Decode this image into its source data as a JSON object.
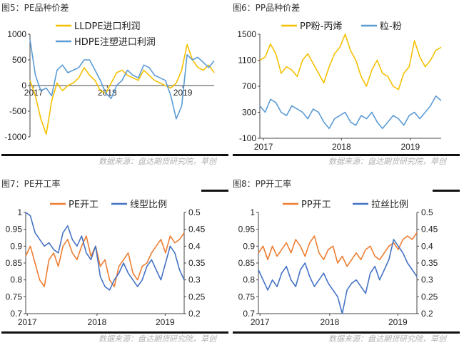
{
  "panels": [
    {
      "title": "图5：PE品种价差",
      "source": "数据来源：盘达期货研究院，草创"
    },
    {
      "title": "图6：PP品种价差",
      "source": "数据来源：盘达期货研究院，草创"
    },
    {
      "title": "图7：PE开工率",
      "source": "数据来源：盘达期货研究院，草创"
    },
    {
      "title": "图8：PP开工率",
      "source": "数据来源：盘达期货研究院，草创"
    }
  ],
  "chart_data": [
    {
      "type": "line",
      "x_ticks": [
        "2017",
        "2018",
        "2019"
      ],
      "ylim": [
        -1000,
        1000
      ],
      "y_ticks": [
        -1000,
        -500,
        0,
        500,
        1000
      ],
      "legend_position": "top",
      "series": [
        {
          "name": "LLDPE进口利润",
          "color": "#F5C000",
          "values": [
            100,
            -200,
            -650,
            -950,
            -300,
            50,
            -100,
            0,
            50,
            150,
            350,
            200,
            100,
            -100,
            -150,
            50,
            250,
            300,
            200,
            150,
            100,
            300,
            200,
            100,
            50,
            0,
            -50,
            50,
            300,
            800,
            500,
            350,
            300,
            400,
            250
          ]
        },
        {
          "name": "HDPE注塑进口利润",
          "color": "#5B9BD5",
          "values": [
            900,
            200,
            -100,
            -50,
            -200,
            300,
            400,
            250,
            300,
            350,
            500,
            500,
            300,
            100,
            -150,
            -250,
            0,
            100,
            300,
            200,
            150,
            400,
            350,
            200,
            150,
            100,
            -200,
            -650,
            -400,
            600,
            500,
            550,
            450,
            350,
            480
          ]
        }
      ]
    },
    {
      "type": "line",
      "x_ticks": [
        "2017",
        "2018",
        "2019"
      ],
      "ylim": [
        -100,
        1500
      ],
      "y_ticks": [
        -100,
        300,
        700,
        1100,
        1500
      ],
      "legend_position": "top",
      "series": [
        {
          "name": "PP粉-丙烯",
          "color": "#F5C000",
          "values": [
            1100,
            1150,
            1350,
            1200,
            900,
            1000,
            950,
            850,
            1100,
            1200,
            1050,
            900,
            750,
            1000,
            1200,
            1300,
            1500,
            1250,
            1100,
            850,
            700,
            950,
            1100,
            900,
            850,
            700,
            650,
            900,
            1000,
            1400,
            1150,
            1000,
            1100,
            1250,
            1300
          ]
        },
        {
          "name": "粒-粉",
          "color": "#5B9BD5",
          "values": [
            400,
            300,
            500,
            450,
            300,
            250,
            400,
            350,
            300,
            200,
            350,
            300,
            150,
            50,
            200,
            250,
            300,
            150,
            100,
            250,
            200,
            300,
            150,
            50,
            150,
            250,
            200,
            100,
            250,
            300,
            200,
            300,
            400,
            550,
            480
          ]
        }
      ]
    },
    {
      "type": "line",
      "x_ticks": [
        "2017",
        "2018",
        "2019"
      ],
      "y_left_lim": [
        0.7,
        1.0
      ],
      "y_left_ticks": [
        0.7,
        0.75,
        0.8,
        0.85,
        0.9,
        0.95,
        1.0
      ],
      "y_right_lim": [
        0.2,
        0.5
      ],
      "y_right_ticks": [
        0.2,
        0.25,
        0.3,
        0.35,
        0.4,
        0.45,
        0.5
      ],
      "legend_position": "top",
      "series": [
        {
          "name": "PE开工",
          "color": "#ED7D31",
          "axis": "left",
          "values": [
            0.87,
            0.9,
            0.85,
            0.8,
            0.78,
            0.86,
            0.88,
            0.84,
            0.9,
            0.92,
            0.88,
            0.86,
            0.9,
            0.93,
            0.87,
            0.9,
            0.84,
            0.86,
            0.8,
            0.78,
            0.84,
            0.86,
            0.88,
            0.82,
            0.8,
            0.84,
            0.85,
            0.88,
            0.9,
            0.92,
            0.88,
            0.93,
            0.91,
            0.92,
            0.94
          ]
        },
        {
          "name": "线型比例",
          "color": "#4472C4",
          "axis": "right",
          "values": [
            0.5,
            0.49,
            0.44,
            0.42,
            0.4,
            0.41,
            0.39,
            0.38,
            0.44,
            0.46,
            0.42,
            0.4,
            0.43,
            0.38,
            0.36,
            0.4,
            0.31,
            0.28,
            0.27,
            0.3,
            0.32,
            0.35,
            0.32,
            0.3,
            0.28,
            0.3,
            0.34,
            0.36,
            0.33,
            0.3,
            0.35,
            0.4,
            0.38,
            0.33,
            0.3
          ]
        }
      ]
    },
    {
      "type": "line",
      "x_ticks": [
        "2017",
        "2018",
        "2019"
      ],
      "y_left_lim": [
        0.7,
        1.0
      ],
      "y_left_ticks": [
        0.7,
        0.75,
        0.8,
        0.85,
        0.9,
        0.95,
        1.0
      ],
      "y_right_lim": [
        0.2,
        0.5
      ],
      "y_right_ticks": [
        0.2,
        0.25,
        0.3,
        0.35,
        0.4,
        0.45,
        0.5
      ],
      "legend_position": "top",
      "series": [
        {
          "name": "PP开工",
          "color": "#ED7D31",
          "axis": "left",
          "values": [
            0.88,
            0.9,
            0.86,
            0.9,
            0.87,
            0.89,
            0.91,
            0.88,
            0.92,
            0.9,
            0.87,
            0.91,
            0.93,
            0.88,
            0.86,
            0.89,
            0.9,
            0.85,
            0.87,
            0.84,
            0.86,
            0.88,
            0.86,
            0.89,
            0.9,
            0.87,
            0.86,
            0.88,
            0.9,
            0.91,
            0.89,
            0.92,
            0.93,
            0.92,
            0.94
          ]
        },
        {
          "name": "拉丝比例",
          "color": "#4472C4",
          "axis": "right",
          "values": [
            0.33,
            0.3,
            0.27,
            0.3,
            0.28,
            0.32,
            0.34,
            0.3,
            0.28,
            0.33,
            0.35,
            0.31,
            0.28,
            0.3,
            0.32,
            0.29,
            0.27,
            0.25,
            0.2,
            0.27,
            0.29,
            0.3,
            0.28,
            0.26,
            0.32,
            0.34,
            0.3,
            0.33,
            0.36,
            0.42,
            0.4,
            0.38,
            0.35,
            0.33,
            0.31
          ]
        }
      ]
    }
  ]
}
